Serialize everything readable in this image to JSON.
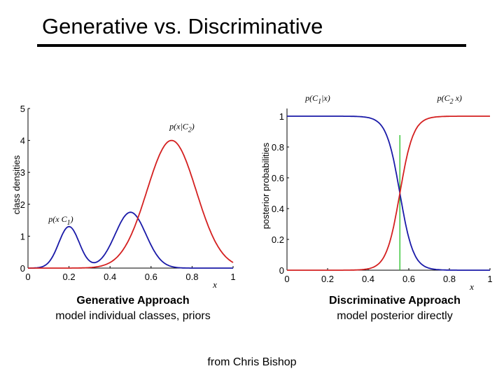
{
  "slide": {
    "title": "Generative vs. Discriminative",
    "credit": "from Chris Bishop"
  },
  "captions": {
    "left": {
      "heading": "Generative Approach",
      "body": "model individual classes, priors"
    },
    "right": {
      "heading": "Discriminative Approach",
      "body": "model posterior directly"
    }
  },
  "chart_data": [
    {
      "id": "left",
      "type": "line",
      "title": "",
      "xlabel": "x",
      "ylabel": "class densities",
      "xlim": [
        0,
        1
      ],
      "ylim": [
        0,
        5
      ],
      "xticks": [
        "0",
        "0.2",
        "0.4",
        "0.6",
        "0.8",
        "1"
      ],
      "xtick_values": [
        0,
        0.2,
        0.4,
        0.6,
        0.8,
        1
      ],
      "yticks": [
        "0",
        "1",
        "2",
        "3",
        "4",
        "5"
      ],
      "ytick_values": [
        0,
        1,
        2,
        3,
        4,
        5
      ],
      "series": [
        {
          "name": "p(x|C1)",
          "color": "#1a1aa8",
          "components": [
            {
              "weight": 0.56,
              "mean": 0.2,
              "sd": 0.05
            },
            {
              "weight": 1.1,
              "mean": 0.5,
              "sd": 0.075
            }
          ]
        },
        {
          "name": "p(x|C2)",
          "color": "#d42020",
          "components": [
            {
              "weight": 1.2,
              "mean": 0.7,
              "sd": 0.12
            }
          ]
        }
      ],
      "annotations": [
        {
          "text_main": "p(x|C",
          "text_sub": "2",
          "text_end": ")",
          "x": 0.69,
          "y": 4.35
        },
        {
          "text_main": "p(x C",
          "text_sub": "1",
          "text_end": ")",
          "x": 0.1,
          "y": 1.45
        }
      ]
    },
    {
      "id": "right",
      "type": "line",
      "title": "",
      "xlabel": "x",
      "ylabel": "posterior probabilities",
      "xlim": [
        0,
        1
      ],
      "ylim": [
        0,
        1.05
      ],
      "xticks": [
        "0",
        "0.2",
        "0.4",
        "0.6",
        "0.8",
        "1"
      ],
      "xtick_values": [
        0,
        0.2,
        0.4,
        0.6,
        0.8,
        1
      ],
      "yticks": [
        "0",
        "0.2",
        "0.4",
        "0.6",
        "0.8",
        "1"
      ],
      "ytick_values": [
        0,
        0.2,
        0.4,
        0.6,
        0.8,
        1
      ],
      "decision_boundary": {
        "x": 0.556,
        "color": "#22c022"
      },
      "series": [
        {
          "name": "p(C1|x)",
          "color": "#1a1aa8",
          "midpoint": 0.556,
          "steepness": -30
        },
        {
          "name": "p(C2|x)",
          "color": "#d42020",
          "midpoint": 0.556,
          "steepness": 30
        }
      ],
      "annotations": [
        {
          "text_main": "p(C",
          "text_sub": "1",
          "text_end": "|x)",
          "x": 0.09,
          "y": 1.1
        },
        {
          "text_main": "p(C",
          "text_sub": "2",
          "text_end": " x)",
          "x": 0.74,
          "y": 1.1
        }
      ]
    }
  ]
}
